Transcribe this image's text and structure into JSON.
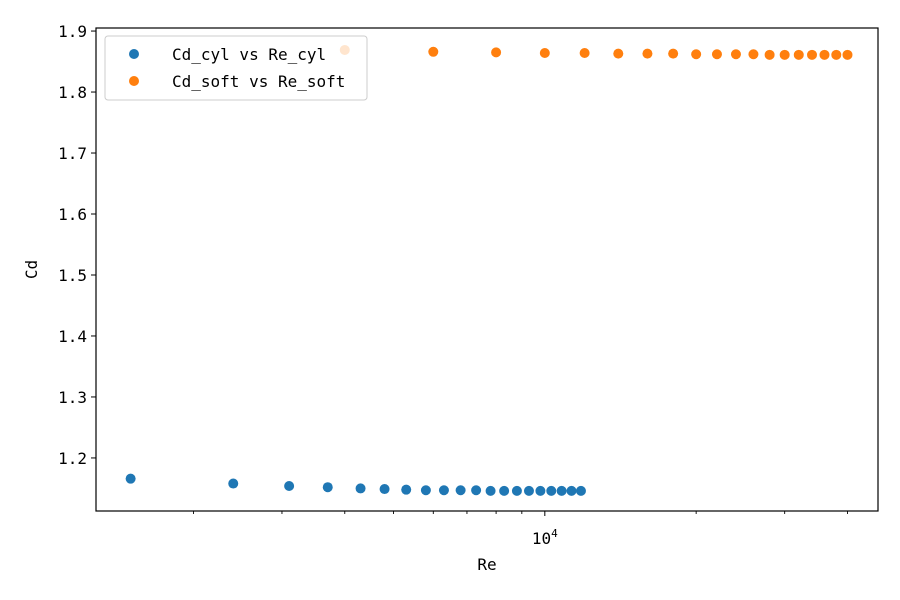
{
  "chart_data": {
    "type": "scatter",
    "title": "",
    "xlabel": "Re",
    "ylabel": "Cd",
    "x_scale": "log",
    "xlim": [
      1280,
      46000
    ],
    "ylim": [
      1.113,
      1.905
    ],
    "y_ticks": [
      "1.2",
      "1.3",
      "1.4",
      "1.5",
      "1.6",
      "1.7",
      "1.8",
      "1.9"
    ],
    "x_major_ticks": [
      {
        "value": 10000,
        "base": "10",
        "exponent": "4"
      }
    ],
    "x_minor_ticks": [
      2000,
      3000,
      4000,
      5000,
      6000,
      7000,
      8000,
      9000,
      20000,
      30000,
      40000
    ],
    "grid": false,
    "legend_position": "upper left",
    "series": [
      {
        "name": "Cd_cyl vs Re_cyl",
        "color": "#1f77b4",
        "x": [
          1500,
          2400,
          3100,
          3700,
          4300,
          4800,
          5300,
          5800,
          6300,
          6800,
          7300,
          7800,
          8300,
          8800,
          9300,
          9800,
          10300,
          10800,
          11300,
          11800
        ],
        "y": [
          1.166,
          1.158,
          1.154,
          1.152,
          1.15,
          1.149,
          1.148,
          1.147,
          1.147,
          1.147,
          1.147,
          1.146,
          1.146,
          1.146,
          1.146,
          1.146,
          1.146,
          1.146,
          1.146,
          1.146
        ]
      },
      {
        "name": "Cd_soft vs Re_soft",
        "color": "#ff7f0e",
        "x": [
          4000,
          6000,
          8000,
          10000,
          12000,
          14000,
          16000,
          18000,
          20000,
          22000,
          24000,
          26000,
          28000,
          30000,
          32000,
          34000,
          36000,
          38000,
          40000
        ],
        "y": [
          1.869,
          1.866,
          1.865,
          1.864,
          1.864,
          1.863,
          1.863,
          1.863,
          1.862,
          1.862,
          1.862,
          1.862,
          1.861,
          1.861,
          1.861,
          1.861,
          1.861,
          1.861,
          1.861
        ]
      }
    ]
  }
}
